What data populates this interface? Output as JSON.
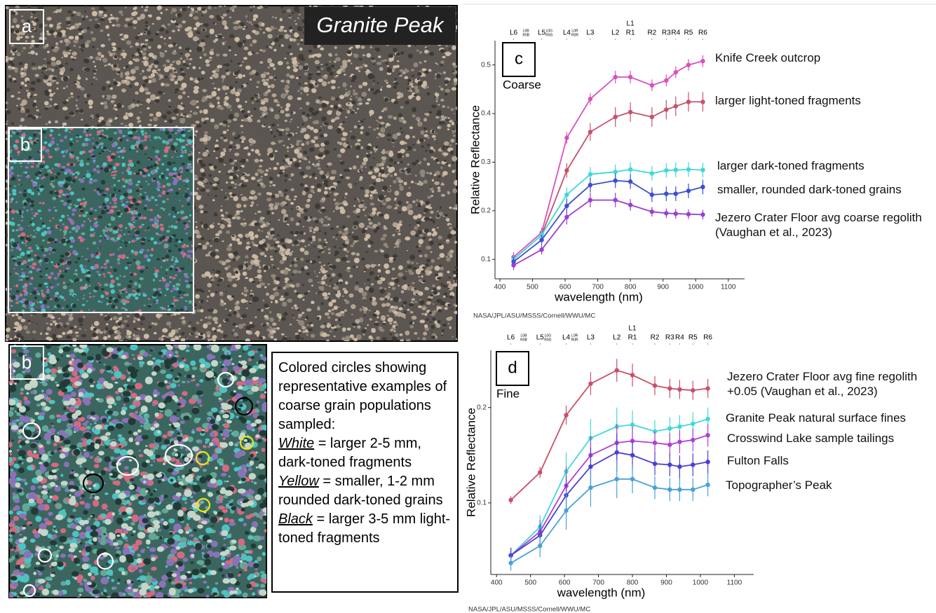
{
  "images": {
    "title": "Granite Peak",
    "panel_a": "a",
    "panel_b_inset": "b",
    "panel_b": "b",
    "caption": {
      "intro": "Colored circles showing representative examples of coarse grain populations sampled:",
      "items": [
        {
          "key": "White",
          "text": "= larger 2-5 mm, dark-toned fragments"
        },
        {
          "key": "Yellow",
          "text": "= smaller, 1-2 mm rounded dark-toned grains"
        },
        {
          "key": "Black",
          "text": "= larger 3-5 mm light-toned fragments"
        }
      ]
    }
  },
  "chart_data": [
    {
      "type": "line",
      "panel": "c",
      "subtitle": "Coarse",
      "xlabel": "wavelength (nm)",
      "ylabel": "Relative Reflectance",
      "credit": "NASA/JPL/ASU/MSSS/Cornell/WWU/MC",
      "x": [
        442,
        528,
        605,
        677,
        754,
        800,
        866,
        910,
        939,
        978,
        1022
      ],
      "xlim": [
        385,
        1150
      ],
      "xticks": [
        400,
        500,
        600,
        700,
        800,
        900,
        1000,
        1100
      ],
      "ylim": [
        0.06,
        0.55
      ],
      "yticks": [
        0.1,
        0.2,
        0.3,
        0.4,
        0.5
      ],
      "filters": [
        {
          "value": 442,
          "label": "L6"
        },
        {
          "value": 528,
          "label": "L5"
        },
        {
          "value": 605,
          "label": "L4"
        },
        {
          "value": 677,
          "label": "L3"
        },
        {
          "value": 754,
          "label": "L2"
        },
        {
          "value": 800,
          "label": "R1"
        },
        {
          "value": 866,
          "label": "R2"
        },
        {
          "value": 910,
          "label": "R3"
        },
        {
          "value": 939,
          "label": "R4"
        },
        {
          "value": 978,
          "label": "R5"
        },
        {
          "value": 1022,
          "label": "R6"
        }
      ],
      "filters_upper": [
        {
          "value": 800,
          "label": "L1"
        }
      ],
      "filters_small": [
        {
          "value": 480,
          "labels": [
            "L0B",
            "R0B"
          ]
        },
        {
          "value": 551,
          "labels": [
            "L0G",
            "R0G"
          ]
        },
        {
          "value": 630,
          "labels": [
            "L0R",
            "R0R"
          ]
        }
      ],
      "series": [
        {
          "name": "Knife Creek outcrop",
          "color": "#d94fc0",
          "values": [
            0.105,
            0.155,
            0.35,
            0.43,
            0.475,
            0.475,
            0.458,
            0.468,
            0.485,
            0.5,
            0.508
          ],
          "errors": [
            0.01,
            0.01,
            0.012,
            0.012,
            0.013,
            0.013,
            0.012,
            0.012,
            0.012,
            0.012,
            0.012
          ]
        },
        {
          "name": "larger light-toned fragments",
          "color": "#c8506a",
          "values": [
            0.1,
            0.15,
            0.283,
            0.362,
            0.393,
            0.403,
            0.393,
            0.408,
            0.415,
            0.424,
            0.424
          ],
          "errors": [
            0.01,
            0.01,
            0.015,
            0.018,
            0.02,
            0.02,
            0.02,
            0.02,
            0.02,
            0.02,
            0.02
          ]
        },
        {
          "name": "larger dark-toned fragments",
          "color": "#40d8d8",
          "values": [
            0.1,
            0.15,
            0.233,
            0.275,
            0.28,
            0.285,
            0.277,
            0.283,
            0.284,
            0.285,
            0.284
          ],
          "errors": [
            0.01,
            0.01,
            0.015,
            0.015,
            0.015,
            0.015,
            0.015,
            0.015,
            0.015,
            0.015,
            0.015
          ]
        },
        {
          "name": "smaller, rounded dark-toned grains",
          "color": "#3a4fd0",
          "values": [
            0.095,
            0.14,
            0.21,
            0.253,
            0.262,
            0.26,
            0.233,
            0.235,
            0.235,
            0.241,
            0.249
          ],
          "errors": [
            0.01,
            0.01,
            0.015,
            0.015,
            0.015,
            0.015,
            0.015,
            0.015,
            0.015,
            0.015,
            0.015
          ]
        },
        {
          "name": "Jezero Crater Floor avg coarse regolith (Vaughan et al., 2023)",
          "color": "#9b3fd0",
          "values": [
            0.088,
            0.12,
            0.187,
            0.222,
            0.222,
            0.212,
            0.198,
            0.195,
            0.194,
            0.193,
            0.192
          ],
          "errors": [
            0.01,
            0.01,
            0.015,
            0.015,
            0.015,
            0.012,
            0.01,
            0.01,
            0.01,
            0.01,
            0.01
          ]
        }
      ]
    },
    {
      "type": "line",
      "panel": "d",
      "subtitle": "Fine",
      "xlabel": "wavelength (nm)",
      "ylabel": "Relative Reflectance",
      "credit": "NASA/JPL/ASU/MSSS/Cornell/WWU/MC",
      "x": [
        442,
        528,
        605,
        677,
        754,
        800,
        866,
        910,
        939,
        978,
        1022
      ],
      "xlim": [
        383,
        1157
      ],
      "xticks": [
        400,
        500,
        600,
        700,
        800,
        900,
        1000,
        1100
      ],
      "ylim": [
        0.025,
        0.26
      ],
      "yticks": [
        0.1,
        0.2
      ],
      "filters": [
        {
          "value": 442,
          "label": "L6"
        },
        {
          "value": 528,
          "label": "L5"
        },
        {
          "value": 605,
          "label": "L4"
        },
        {
          "value": 677,
          "label": "L3"
        },
        {
          "value": 754,
          "label": "L2"
        },
        {
          "value": 800,
          "label": "R1"
        },
        {
          "value": 866,
          "label": "R2"
        },
        {
          "value": 910,
          "label": "R3"
        },
        {
          "value": 939,
          "label": "R4"
        },
        {
          "value": 978,
          "label": "R5"
        },
        {
          "value": 1022,
          "label": "R6"
        }
      ],
      "filters_upper": [
        {
          "value": 800,
          "label": "L1"
        }
      ],
      "filters_small": [
        {
          "value": 480,
          "labels": [
            "L0B",
            "R0B"
          ]
        },
        {
          "value": 551,
          "labels": [
            "L0G",
            "R0G"
          ]
        },
        {
          "value": 630,
          "labels": [
            "L0R",
            "R0R"
          ]
        }
      ],
      "series": [
        {
          "name": "Jezero Crater Floor avg fine regolith +0.05 (Vaughan et al., 2023)",
          "color": "#c8506a",
          "values": [
            0.103,
            0.132,
            0.192,
            0.225,
            0.239,
            0.234,
            0.223,
            0.22,
            0.219,
            0.218,
            0.22
          ],
          "errors": [
            0.004,
            0.006,
            0.01,
            0.012,
            0.012,
            0.012,
            0.01,
            0.01,
            0.01,
            0.01,
            0.01
          ]
        },
        {
          "name": "Granite Peak natural surface fines",
          "color": "#40d8d8",
          "values": [
            0.045,
            0.075,
            0.133,
            0.168,
            0.18,
            0.182,
            0.175,
            0.178,
            0.18,
            0.183,
            0.188
          ],
          "errors": [
            0.008,
            0.012,
            0.02,
            0.02,
            0.02,
            0.015,
            0.012,
            0.012,
            0.012,
            0.012,
            0.012
          ]
        },
        {
          "name": "Crosswind Lake sample tailings",
          "color": "#b040d0",
          "values": [
            0.045,
            0.07,
            0.118,
            0.15,
            0.163,
            0.165,
            0.163,
            0.161,
            0.164,
            0.166,
            0.171
          ],
          "errors": [
            0.008,
            0.012,
            0.02,
            0.02,
            0.02,
            0.015,
            0.012,
            0.012,
            0.012,
            0.012,
            0.012
          ]
        },
        {
          "name": "Fulton Falls",
          "color": "#4a3fd0",
          "values": [
            0.045,
            0.066,
            0.108,
            0.138,
            0.153,
            0.15,
            0.141,
            0.14,
            0.138,
            0.14,
            0.143
          ],
          "errors": [
            0.008,
            0.012,
            0.02,
            0.02,
            0.02,
            0.015,
            0.012,
            0.012,
            0.012,
            0.012,
            0.012
          ]
        },
        {
          "name": "Topographer’s Peak",
          "color": "#4aa0d8",
          "values": [
            0.037,
            0.055,
            0.092,
            0.116,
            0.125,
            0.125,
            0.116,
            0.114,
            0.114,
            0.114,
            0.119
          ],
          "errors": [
            0.008,
            0.012,
            0.02,
            0.02,
            0.02,
            0.015,
            0.012,
            0.012,
            0.012,
            0.012,
            0.012
          ]
        }
      ]
    }
  ]
}
